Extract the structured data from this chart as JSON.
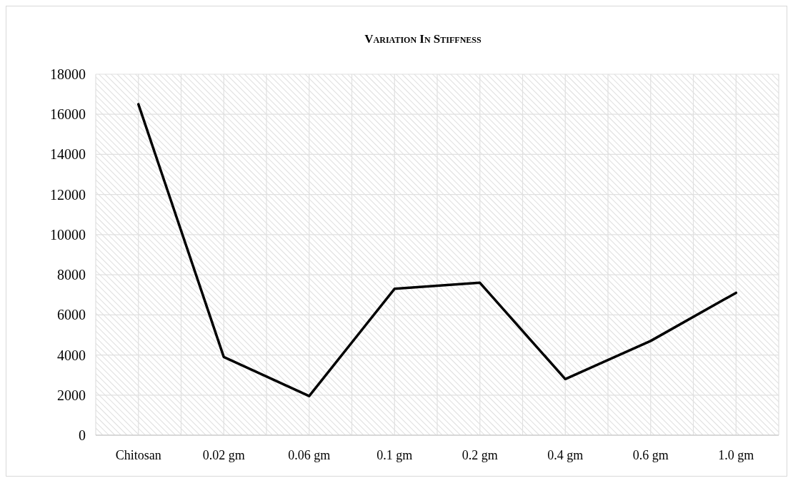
{
  "chart_data": {
    "type": "line",
    "title": "Variation In Stiffness",
    "categories": [
      "Chitosan",
      "0.02 gm",
      "0.06 gm",
      "0.1 gm",
      "0.2 gm",
      "0.4 gm",
      "0.6 gm",
      "1.0 gm"
    ],
    "series": [
      {
        "color": "#000000",
        "values": [
          16500,
          3900,
          1950,
          7300,
          7600,
          2800,
          4700,
          7100
        ]
      }
    ],
    "ylim": [
      0,
      18000
    ],
    "yticks": [
      0,
      2000,
      4000,
      6000,
      8000,
      10000,
      12000,
      14000,
      16000,
      18000
    ],
    "grid": true,
    "marker": "none",
    "line_style": "solid"
  }
}
